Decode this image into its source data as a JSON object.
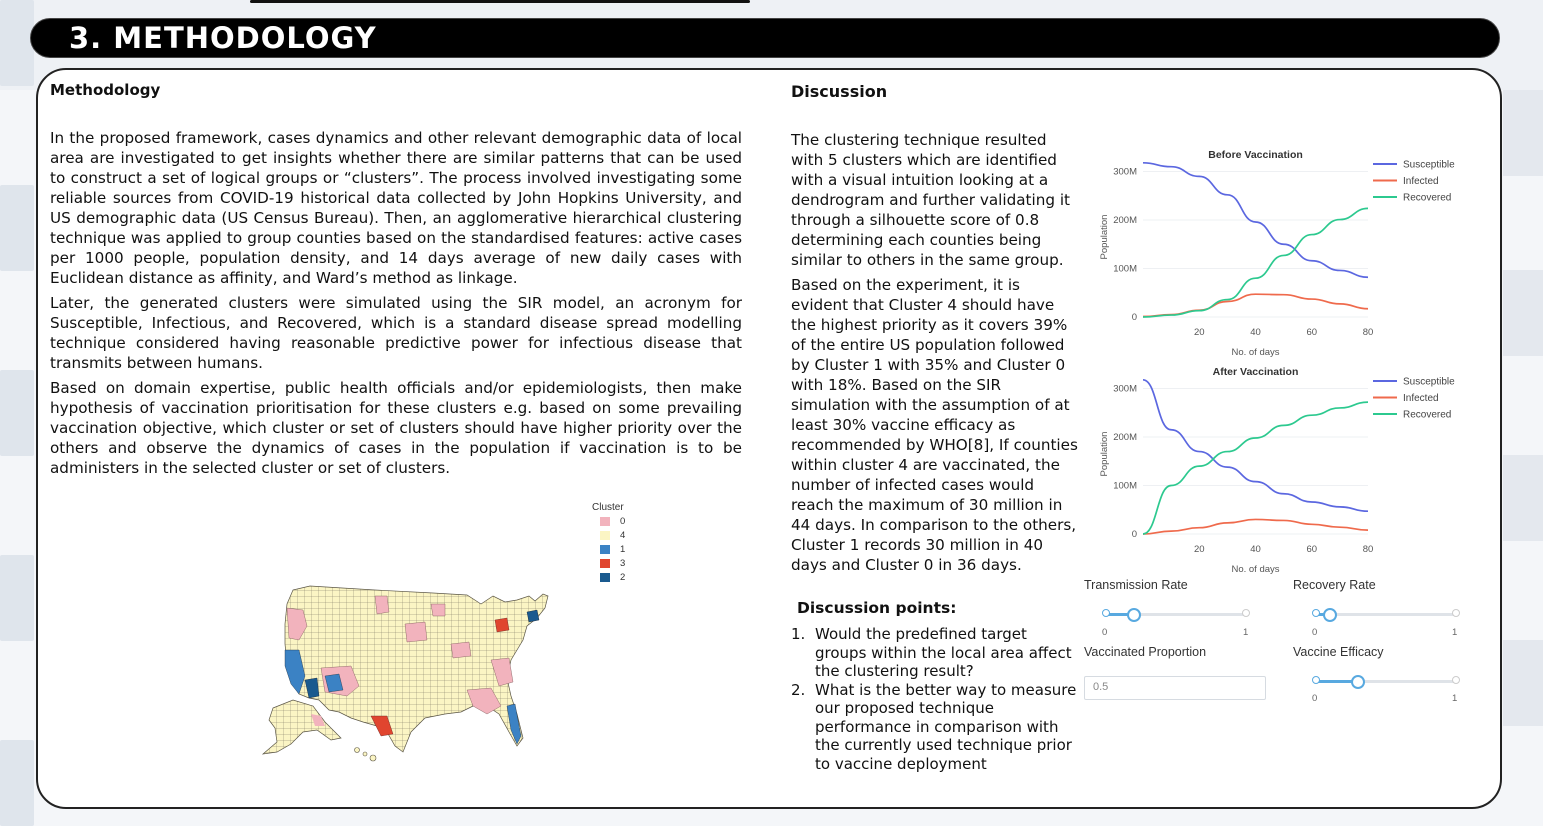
{
  "header": {
    "title": "3. METHODOLOGY"
  },
  "methodology": {
    "heading": "Methodology",
    "paragraphs": [
      "In the proposed framework, cases dynamics and other relevant demographic data of local area are investigated to get insights whether there are similar patterns that can be used to construct a set of logical groups or “clusters”. The process involved investigating some reliable sources from COVID-19 historical data collected by John Hopkins University, and US demographic data (US Census Bureau). Then, an agglomerative hierarchical clustering technique was applied to group counties based on the standardised features: active cases per 1000 people, population density, and 14 days average of new daily cases with Euclidean distance as affinity, and Ward’s method as linkage.",
      "Later, the generated clusters were simulated using the SIR model, an acronym for Susceptible, Infectious, and Recovered, which is a standard disease spread modelling technique considered having reasonable predictive power for infectious disease that transmits between humans.",
      "Based on domain expertise, public health officials and/or epidemiologists, then make hypothesis of vaccination prioritisation for these clusters e.g. based on some prevailing vaccination objective, which cluster or set of clusters should have higher priority over the others and observe the dynamics of cases in the population if vaccination is to be administers in the selected cluster or set of clusters."
    ]
  },
  "map": {
    "legend_title": "Cluster",
    "legend": [
      {
        "label": "0",
        "color": "#f2b3bd"
      },
      {
        "label": "4",
        "color": "#fbf5c4"
      },
      {
        "label": "1",
        "color": "#3b82c4"
      },
      {
        "label": "3",
        "color": "#e0452f"
      },
      {
        "label": "2",
        "color": "#1a5a8f"
      }
    ]
  },
  "discussion": {
    "heading": "Discussion",
    "paragraphs": [
      "The clustering technique resulted with 5 clusters which are identified with a visual intuition looking at a dendrogram and further validating it through a silhouette score of 0.8 determining each counties being similar to others in the same group.",
      "Based on the experiment, it is evident that Cluster 4 should have the highest priority as it covers 39% of the entire US population followed by Cluster 1 with 35% and Cluster 0 with 18%. Based on the SIR simulation with the assumption of at least 30% vaccine efficacy as recommended by WHO[8], If counties within cluster 4 are vaccinated, the number of infected cases would reach the maximum of 30 million in 44 days. In comparison to the others, Cluster 1 records 30 million in 40 days and Cluster 0 in 36 days."
    ],
    "points_title": "Discussion points:",
    "points": [
      {
        "num": "1.",
        "text": "Would the predefined target groups within the local area affect the clustering result?"
      },
      {
        "num": "2.",
        "text": "What is the better way to measure our proposed technique performance in comparison with the currently used technique prior to vaccine deployment"
      }
    ]
  },
  "chart_data": [
    {
      "type": "line",
      "title": "Before Vaccination",
      "xlabel": "No. of days",
      "ylabel": "Population",
      "xlim": [
        0,
        80
      ],
      "ylim": [
        0,
        330000000
      ],
      "xticks": [
        "20",
        "40",
        "60",
        "80"
      ],
      "yticks": [
        "0",
        "100M",
        "200M",
        "300M"
      ],
      "legend_position": "top-right",
      "x": [
        0,
        10,
        20,
        30,
        40,
        50,
        60,
        70,
        80
      ],
      "series": [
        {
          "name": "Susceptible",
          "color": "#5b67e0",
          "values": [
            318000000,
            310000000,
            290000000,
            252000000,
            196000000,
            150000000,
            116000000,
            96000000,
            82000000
          ]
        },
        {
          "name": "Infected",
          "color": "#ef6a4c",
          "values": [
            1000000,
            5000000,
            14000000,
            32000000,
            47000000,
            46000000,
            37000000,
            27000000,
            17000000
          ]
        },
        {
          "name": "Recovered",
          "color": "#2cc98f",
          "values": [
            0,
            4000000,
            13000000,
            36000000,
            80000000,
            127000000,
            170000000,
            201000000,
            224000000
          ]
        }
      ]
    },
    {
      "type": "line",
      "title": "After Vaccination",
      "xlabel": "No. of days",
      "ylabel": "Population",
      "xlim": [
        0,
        80
      ],
      "ylim": [
        0,
        330000000
      ],
      "xticks": [
        "20",
        "40",
        "60",
        "80"
      ],
      "yticks": [
        "0",
        "100M",
        "200M",
        "300M"
      ],
      "legend_position": "top-right",
      "x": [
        0,
        10,
        20,
        30,
        40,
        50,
        60,
        70,
        80
      ],
      "series": [
        {
          "name": "Susceptible",
          "color": "#5b67e0",
          "values": [
            318000000,
            215000000,
            170000000,
            138000000,
            108000000,
            83000000,
            66000000,
            56000000,
            47000000
          ]
        },
        {
          "name": "Infected",
          "color": "#ef6a4c",
          "values": [
            0,
            6000000,
            13000000,
            23000000,
            30000000,
            28000000,
            20000000,
            14000000,
            8000000
          ]
        },
        {
          "name": "Recovered",
          "color": "#2cc98f",
          "values": [
            0,
            100000000,
            140000000,
            170000000,
            198000000,
            224000000,
            245000000,
            260000000,
            272000000
          ]
        }
      ]
    }
  ],
  "controls": {
    "transmission_rate": {
      "label": "Transmission Rate",
      "min": "0",
      "max": "1",
      "value": 0.2
    },
    "recovery_rate": {
      "label": "Recovery Rate",
      "min": "0",
      "max": "1",
      "value": 0.1
    },
    "vaccinated_proportion": {
      "label": "Vaccinated Proportion",
      "value": "0.5"
    },
    "vaccine_efficacy": {
      "label": "Vaccine Efficacy",
      "min": "0",
      "max": "1",
      "value": 0.3
    }
  }
}
